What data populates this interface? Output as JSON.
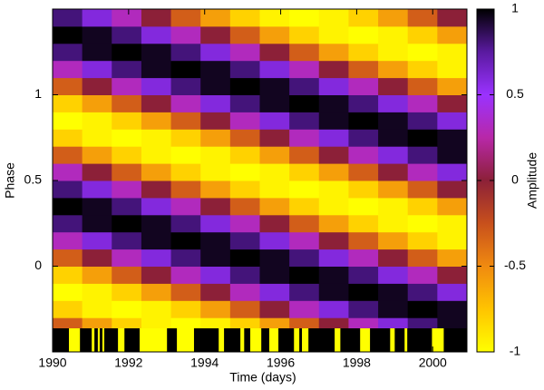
{
  "chart_data": {
    "type": "heatmap",
    "xlabel": "Time (days)",
    "ylabel": "Phase",
    "colorbar_label": "Amplitude",
    "xlim": [
      1990,
      2000.9
    ],
    "xticks": [
      1990,
      1992,
      1994,
      1996,
      1998,
      2000
    ],
    "ylim": [
      -0.5,
      1.5
    ],
    "yticks": [
      0,
      0.5,
      1
    ],
    "zlim": [
      -1,
      1
    ],
    "zticks": [
      -1,
      -0.5,
      0,
      0.5,
      1
    ],
    "colormap": [
      "#ffff00",
      "#ffc400",
      "#f08a10",
      "#c8501c",
      "#8c2038",
      "#b828a8",
      "#9a32ff",
      "#5a1aa0",
      "#000000"
    ],
    "x": [
      1990.389,
      1991.168,
      1991.946,
      1992.725,
      1993.504,
      1994.282,
      1995.061,
      1995.839,
      1996.618,
      1997.396,
      1998.175,
      1998.954,
      1999.732,
      2000.511
    ],
    "y": [
      -0.45,
      -0.35,
      -0.25,
      -0.15,
      -0.05,
      0.05,
      0.15,
      0.25,
      0.35,
      0.45,
      0.55,
      0.65,
      0.75,
      0.85,
      0.95,
      1.05,
      1.15,
      1.25,
      1.35,
      1.45
    ],
    "z": [
      [
        0.31,
        0,
        -0.31,
        -0.59,
        -0.81,
        -0.95,
        -1,
        -0.95,
        -0.81,
        -0.59,
        -0.31,
        0,
        0.31,
        0.59
      ],
      [
        -0.31,
        -0.59,
        -0.81,
        -0.95,
        -1,
        -0.95,
        -0.81,
        -0.59,
        -0.31,
        0,
        0.31,
        0.59,
        0.81,
        0.95
      ],
      [
        -0.81,
        -0.95,
        -1,
        -0.95,
        -0.81,
        -0.59,
        -0.31,
        0,
        0.31,
        0.59,
        0.81,
        0.95,
        1,
        0.95
      ],
      [
        -1,
        -0.95,
        -0.81,
        -0.59,
        -0.31,
        0,
        0.31,
        0.59,
        0.81,
        0.95,
        1,
        0.95,
        0.81,
        0.59
      ],
      [
        -0.81,
        -0.59,
        -0.31,
        0,
        0.31,
        0.59,
        0.81,
        0.95,
        1,
        0.95,
        0.81,
        0.59,
        0.31,
        0
      ],
      [
        -0.31,
        0,
        0.31,
        0.59,
        0.81,
        0.95,
        1,
        0.95,
        0.81,
        0.59,
        0.31,
        0,
        -0.31,
        -0.59
      ],
      [
        0.31,
        0.59,
        0.81,
        0.95,
        1,
        0.95,
        0.81,
        0.59,
        0.31,
        0,
        -0.31,
        -0.59,
        -0.81,
        -0.95
      ],
      [
        0.81,
        0.95,
        1,
        0.95,
        0.81,
        0.59,
        0.31,
        0,
        -0.31,
        -0.59,
        -0.81,
        -0.95,
        -1,
        -0.95
      ],
      [
        1,
        0.95,
        0.81,
        0.59,
        0.31,
        0,
        -0.31,
        -0.59,
        -0.81,
        -0.95,
        -1,
        -0.95,
        -0.81,
        -0.59
      ],
      [
        0.81,
        0.59,
        0.31,
        0,
        -0.31,
        -0.59,
        -0.81,
        -0.95,
        -1,
        -0.95,
        -0.81,
        -0.59,
        -0.31,
        0
      ],
      [
        0.31,
        0,
        -0.31,
        -0.59,
        -0.81,
        -0.95,
        -1,
        -0.95,
        -0.81,
        -0.59,
        -0.31,
        0,
        0.31,
        0.59
      ],
      [
        -0.31,
        -0.59,
        -0.81,
        -0.95,
        -1,
        -0.95,
        -0.81,
        -0.59,
        -0.31,
        0,
        0.31,
        0.59,
        0.81,
        0.95
      ],
      [
        -0.81,
        -0.95,
        -1,
        -0.95,
        -0.81,
        -0.59,
        -0.31,
        0,
        0.31,
        0.59,
        0.81,
        0.95,
        1,
        0.95
      ],
      [
        -1,
        -0.95,
        -0.81,
        -0.59,
        -0.31,
        0,
        0.31,
        0.59,
        0.81,
        0.95,
        1,
        0.95,
        0.81,
        0.59
      ],
      [
        -0.81,
        -0.59,
        -0.31,
        0,
        0.31,
        0.59,
        0.81,
        0.95,
        1,
        0.95,
        0.81,
        0.59,
        0.31,
        0
      ],
      [
        -0.31,
        0,
        0.31,
        0.59,
        0.81,
        0.95,
        1,
        0.95,
        0.81,
        0.59,
        0.31,
        0,
        -0.31,
        -0.59
      ],
      [
        0.31,
        0.59,
        0.81,
        0.95,
        1,
        0.95,
        0.81,
        0.59,
        0.31,
        0,
        -0.31,
        -0.59,
        -0.81,
        -0.95
      ],
      [
        0.81,
        0.95,
        1,
        0.95,
        0.81,
        0.59,
        0.31,
        0,
        -0.31,
        -0.59,
        -0.81,
        -0.95,
        -1,
        -0.95
      ],
      [
        1,
        0.95,
        0.81,
        0.59,
        0.31,
        0,
        -0.31,
        -0.59,
        -0.81,
        -0.95,
        -1,
        -0.95,
        -0.81,
        -0.59
      ],
      [
        0.81,
        0.59,
        0.31,
        0,
        -0.31,
        -0.59,
        -0.81,
        -0.95,
        -1,
        -0.95,
        -0.81,
        -0.59,
        -0.31,
        0
      ]
    ],
    "coverage_color": "#ffff00",
    "gap_color": "#000000",
    "observed": [
      [
        1990.43,
        1990.72
      ],
      [
        1991.03,
        1991.1
      ],
      [
        1991.19,
        1991.24
      ],
      [
        1991.31,
        1991.36
      ],
      [
        1991.72,
        1991.89
      ],
      [
        1992.29,
        1993.01
      ],
      [
        1993.27,
        1993.72
      ],
      [
        1994.37,
        1994.51
      ],
      [
        1994.94,
        1995.04
      ],
      [
        1995.2,
        1995.49
      ],
      [
        1995.7,
        1995.94
      ],
      [
        1996.35,
        1996.49
      ],
      [
        1996.56,
        1996.73
      ],
      [
        1997.42,
        1997.57
      ],
      [
        1998.09,
        1998.35
      ],
      [
        1998.88,
        1999.0
      ],
      [
        1999.26,
        1999.33
      ],
      [
        1999.98,
        2000.29
      ]
    ]
  }
}
